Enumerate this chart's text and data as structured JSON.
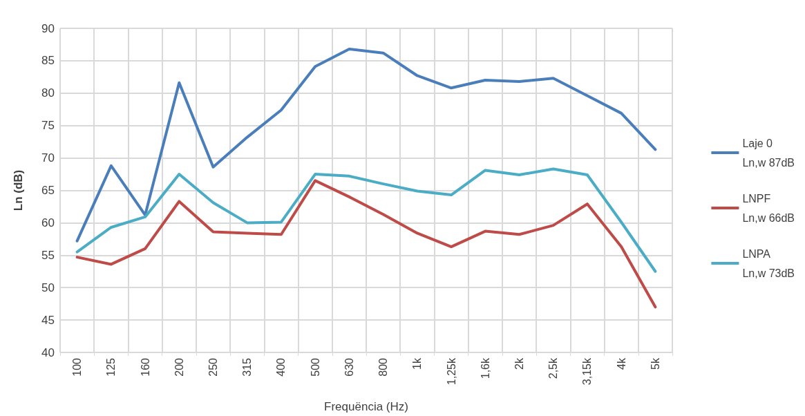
{
  "chart_data": {
    "type": "line",
    "xlabel": "Frequëncia (Hz)",
    "ylabel": "Ln (dB)",
    "categories": [
      "100",
      "125",
      "160",
      "200",
      "250",
      "315",
      "400",
      "500",
      "630",
      "800",
      "1k",
      "1,25k",
      "1,6k",
      "2k",
      "2,5k",
      "3,15k",
      "4k",
      "5k"
    ],
    "series": [
      {
        "name": "Laje 0\nLn,w 87dB",
        "color": "#4a7ebb",
        "values": [
          57.2,
          68.8,
          61.2,
          81.6,
          68.6,
          73.2,
          77.4,
          84.1,
          86.8,
          86.2,
          82.7,
          80.8,
          82.0,
          81.8,
          82.3,
          79.6,
          76.9,
          71.3
        ]
      },
      {
        "name": "LNPF\nLn,w 66dB",
        "color": "#be4b48",
        "values": [
          54.7,
          53.6,
          56.0,
          63.3,
          58.6,
          58.4,
          58.2,
          66.5,
          64.0,
          61.3,
          58.4,
          56.3,
          58.7,
          58.2,
          59.6,
          62.9,
          56.3,
          47.0
        ]
      },
      {
        "name": "LNPA\nLn,w 73dB",
        "color": "#4bacc6",
        "values": [
          55.5,
          59.3,
          60.9,
          67.5,
          63.1,
          60.0,
          60.1,
          67.5,
          67.2,
          66.0,
          64.9,
          64.3,
          68.1,
          67.4,
          68.3,
          67.4,
          60.1,
          52.5
        ]
      }
    ],
    "ylim": [
      40,
      90
    ],
    "yticks": [
      40,
      45,
      50,
      55,
      60,
      65,
      70,
      75,
      80,
      85,
      90
    ],
    "grid": true,
    "legend": "right",
    "marker": "none",
    "line_style": "solid"
  }
}
